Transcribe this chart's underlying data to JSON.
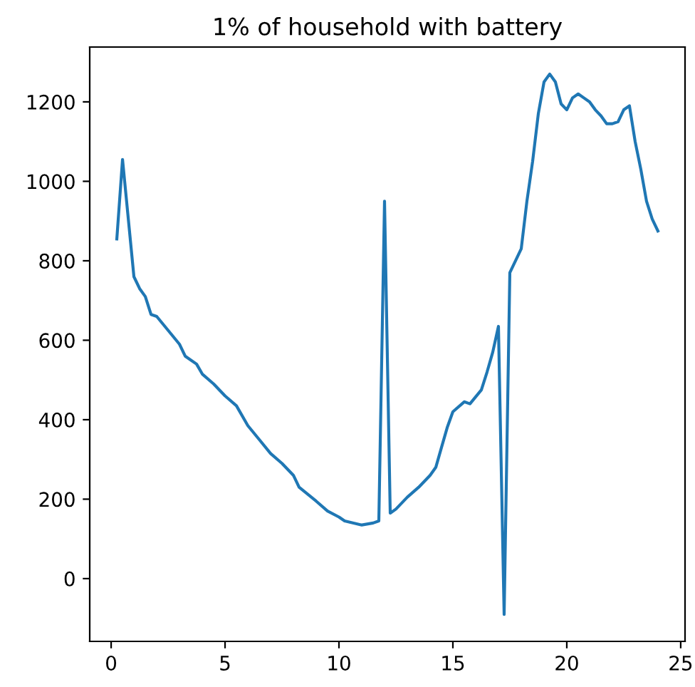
{
  "chart_data": {
    "type": "line",
    "title": "1% of household with battery",
    "x": [
      0.25,
      0.5,
      1.0,
      1.25,
      1.5,
      1.75,
      2,
      2.5,
      3,
      3.25,
      3.75,
      4,
      4.5,
      5,
      5.5,
      6,
      6.5,
      7,
      7.5,
      8,
      8.25,
      9,
      9.5,
      10,
      10.25,
      11,
      11.5,
      11.75,
      12,
      12.25,
      12.5,
      13,
      13.5,
      14,
      14.25,
      14.5,
      14.75,
      15,
      15.5,
      15.75,
      16.25,
      16.5,
      16.75,
      17,
      17.25,
      17.5,
      18,
      18.25,
      18.5,
      18.75,
      19,
      19.25,
      19.5,
      19.75,
      20,
      20.25,
      20.5,
      20.75,
      21,
      21.25,
      21.5,
      21.75,
      22,
      22.25,
      22.5,
      22.75,
      23,
      23.25,
      23.5,
      23.75,
      24
    ],
    "series": [
      {
        "color": "#1f77b4",
        "values": [
          855,
          1055,
          760,
          730,
          710,
          665,
          660,
          625,
          590,
          560,
          540,
          515,
          490,
          460,
          435,
          385,
          350,
          315,
          290,
          260,
          230,
          195,
          170,
          155,
          145,
          135,
          140,
          145,
          950,
          165,
          175,
          205,
          230,
          260,
          280,
          330,
          380,
          420,
          445,
          440,
          475,
          520,
          570,
          635,
          -90,
          770,
          830,
          950,
          1050,
          1170,
          1250,
          1270,
          1250,
          1195,
          1180,
          1210,
          1220,
          1210,
          1200,
          1180,
          1165,
          1145,
          1145,
          1150,
          1180,
          1190,
          1100,
          1030,
          950,
          905,
          875
        ]
      }
    ],
    "xlim": [
      -0.94,
      25.19
    ],
    "ylim": [
      -158,
      1338
    ],
    "xticks": [
      0,
      5,
      10,
      15,
      20,
      25
    ],
    "yticks": [
      0,
      200,
      400,
      600,
      800,
      1000,
      1200
    ],
    "grid": false,
    "legend": false
  }
}
